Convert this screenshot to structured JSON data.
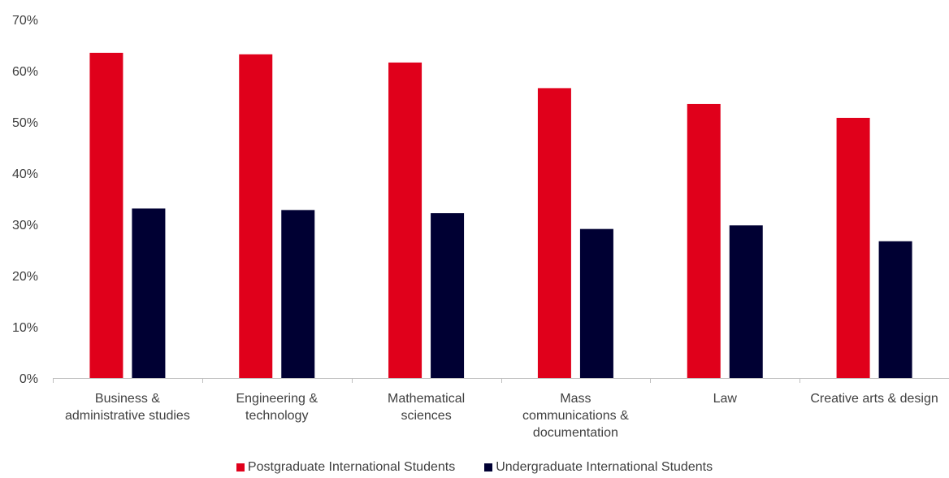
{
  "chart_data": {
    "type": "bar",
    "title": "",
    "xlabel": "",
    "ylabel": "",
    "categories": [
      [
        "Business &",
        "administrative studies"
      ],
      [
        "Engineering &",
        "technology"
      ],
      [
        "Mathematical",
        "sciences"
      ],
      [
        "Mass",
        "communications &",
        "documentation"
      ],
      [
        "Law"
      ],
      [
        "Creative arts & design"
      ]
    ],
    "series": [
      {
        "name": "Postgraduate International Students",
        "color": "#e0001b",
        "values": [
          63.5,
          63.2,
          61.6,
          56.6,
          53.5,
          50.8
        ]
      },
      {
        "name": "Undergraduate International Students",
        "color": "#000033",
        "values": [
          33.1,
          32.8,
          32.2,
          29.1,
          29.8,
          26.7
        ]
      }
    ],
    "ylim": [
      0,
      70
    ],
    "yticks": [
      "0%",
      "10%",
      "20%",
      "30%",
      "40%",
      "50%",
      "60%",
      "70%"
    ],
    "legend_position": "bottom",
    "grid": false
  }
}
